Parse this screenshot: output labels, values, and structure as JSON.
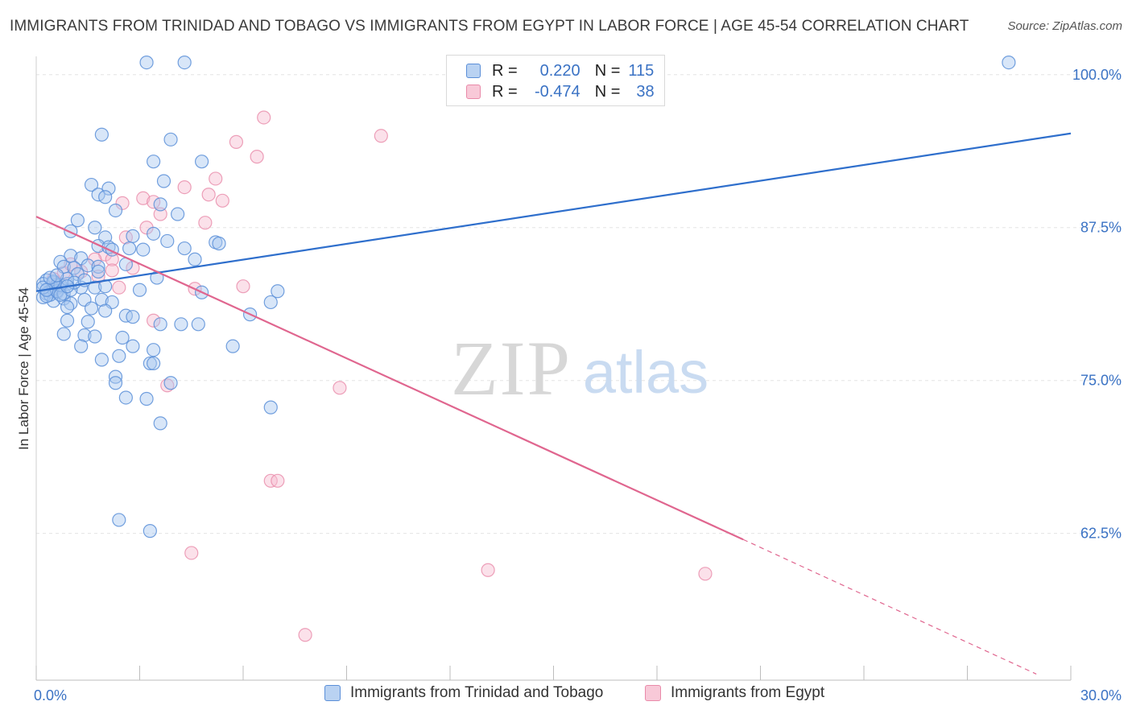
{
  "header": {
    "title": "IMMIGRANTS FROM TRINIDAD AND TOBAGO VS IMMIGRANTS FROM EGYPT IN LABOR FORCE | AGE 45-54 CORRELATION CHART",
    "source": "Source: ZipAtlas.com"
  },
  "watermark": {
    "zip": "ZIP",
    "atlas": "atlas"
  },
  "legend": {
    "series1": {
      "r_label": "R =",
      "r_value": "0.220",
      "n_label": "N =",
      "n_value": "115"
    },
    "series2": {
      "r_label": "R =",
      "r_value": "-0.474",
      "n_label": "N =",
      "n_value": "38"
    }
  },
  "colors": {
    "series1_fill": "#a9c7ef",
    "series1_stroke": "#5b8fd8",
    "series1_line": "#2f6fcc",
    "series2_fill": "#f6bdd0",
    "series2_stroke": "#e98aa9",
    "series2_line": "#e0668f",
    "tick_text": "#3a72c4",
    "grid": "#e4e4e4"
  },
  "chart_data": {
    "type": "scatter",
    "title": "IMMIGRANTS FROM TRINIDAD AND TOBAGO VS IMMIGRANTS FROM EGYPT IN LABOR FORCE | AGE 45-54 CORRELATION CHART",
    "xlabel": "",
    "ylabel": "In Labor Force | Age 45-54",
    "xlim": [
      0,
      30
    ],
    "ylim": [
      50.5,
      101.5
    ],
    "x_tick_labels": [
      "0.0%",
      "30.0%"
    ],
    "y_ticks": [
      100,
      87.5,
      75,
      62.5
    ],
    "y_tick_labels": [
      "100.0%",
      "87.5%",
      "75.0%",
      "62.5%"
    ],
    "grid": true,
    "legend_position": "bottom-center",
    "series": [
      {
        "name": "Immigrants from Trinidad and Tobago",
        "trend": {
          "x": [
            0,
            30
          ],
          "y": [
            82.3,
            95.2
          ]
        },
        "points": [
          [
            3.2,
            101.0
          ],
          [
            4.3,
            101.0
          ],
          [
            28.2,
            101.0
          ],
          [
            1.9,
            95.1
          ],
          [
            3.9,
            94.7
          ],
          [
            3.4,
            92.9
          ],
          [
            4.8,
            92.9
          ],
          [
            3.7,
            91.3
          ],
          [
            1.6,
            91.0
          ],
          [
            2.1,
            90.7
          ],
          [
            1.8,
            90.2
          ],
          [
            2.0,
            90.0
          ],
          [
            3.6,
            89.4
          ],
          [
            2.3,
            88.9
          ],
          [
            4.1,
            88.6
          ],
          [
            1.2,
            88.1
          ],
          [
            1.7,
            87.5
          ],
          [
            1.0,
            87.2
          ],
          [
            3.4,
            87.0
          ],
          [
            2.0,
            86.7
          ],
          [
            2.8,
            86.8
          ],
          [
            3.8,
            86.4
          ],
          [
            5.2,
            86.3
          ],
          [
            5.3,
            86.2
          ],
          [
            1.8,
            86.0
          ],
          [
            2.1,
            85.9
          ],
          [
            2.2,
            85.7
          ],
          [
            2.7,
            85.8
          ],
          [
            3.1,
            85.7
          ],
          [
            4.3,
            85.8
          ],
          [
            1.0,
            85.2
          ],
          [
            1.3,
            85.0
          ],
          [
            0.7,
            84.7
          ],
          [
            4.6,
            84.9
          ],
          [
            0.8,
            84.3
          ],
          [
            1.5,
            84.4
          ],
          [
            2.6,
            84.5
          ],
          [
            1.1,
            84.2
          ],
          [
            1.8,
            84.3
          ],
          [
            3.5,
            83.4
          ],
          [
            1.2,
            83.7
          ],
          [
            1.8,
            83.9
          ],
          [
            0.3,
            83.2
          ],
          [
            0.5,
            83.0
          ],
          [
            0.6,
            82.8
          ],
          [
            0.2,
            82.9
          ],
          [
            0.7,
            82.6
          ],
          [
            0.9,
            82.9
          ],
          [
            1.3,
            82.6
          ],
          [
            1.7,
            82.6
          ],
          [
            2.0,
            82.7
          ],
          [
            0.4,
            82.3
          ],
          [
            0.6,
            82.2
          ],
          [
            0.3,
            82.1
          ],
          [
            3.0,
            82.4
          ],
          [
            4.8,
            82.2
          ],
          [
            7.0,
            82.3
          ],
          [
            0.2,
            81.8
          ],
          [
            0.5,
            81.5
          ],
          [
            0.8,
            81.7
          ],
          [
            1.0,
            81.3
          ],
          [
            1.4,
            81.6
          ],
          [
            1.9,
            81.6
          ],
          [
            2.2,
            81.4
          ],
          [
            6.8,
            81.4
          ],
          [
            0.9,
            81.0
          ],
          [
            1.6,
            80.9
          ],
          [
            2.0,
            80.7
          ],
          [
            2.6,
            80.3
          ],
          [
            2.8,
            80.2
          ],
          [
            6.2,
            80.4
          ],
          [
            0.9,
            79.9
          ],
          [
            1.5,
            79.8
          ],
          [
            3.6,
            79.6
          ],
          [
            4.2,
            79.6
          ],
          [
            4.7,
            79.6
          ],
          [
            0.8,
            78.8
          ],
          [
            1.4,
            78.7
          ],
          [
            1.7,
            78.6
          ],
          [
            2.5,
            78.5
          ],
          [
            1.3,
            77.8
          ],
          [
            2.8,
            77.8
          ],
          [
            3.4,
            77.5
          ],
          [
            5.7,
            77.8
          ],
          [
            1.9,
            76.7
          ],
          [
            2.4,
            77.0
          ],
          [
            3.3,
            76.4
          ],
          [
            3.4,
            76.4
          ],
          [
            2.3,
            75.3
          ],
          [
            2.3,
            74.8
          ],
          [
            3.9,
            74.8
          ],
          [
            2.6,
            73.6
          ],
          [
            3.2,
            73.5
          ],
          [
            6.8,
            72.8
          ],
          [
            3.6,
            71.5
          ],
          [
            2.4,
            63.6
          ],
          [
            3.3,
            62.7
          ],
          [
            0.5,
            82.5
          ],
          [
            0.4,
            82.0
          ],
          [
            0.3,
            81.9
          ],
          [
            0.6,
            82.3
          ],
          [
            0.8,
            82.1
          ],
          [
            1.0,
            82.4
          ],
          [
            0.2,
            82.6
          ],
          [
            0.7,
            82.8
          ],
          [
            0.5,
            83.1
          ],
          [
            0.9,
            83.3
          ],
          [
            1.1,
            83.0
          ],
          [
            0.4,
            83.4
          ],
          [
            0.6,
            83.6
          ],
          [
            1.4,
            83.2
          ],
          [
            0.3,
            82.4
          ],
          [
            0.7,
            82.0
          ],
          [
            0.9,
            82.7
          ]
        ]
      },
      {
        "name": "Immigrants from Egypt",
        "trend": {
          "x": [
            0,
            20.5
          ],
          "y": [
            88.4,
            62.0
          ]
        },
        "trend_dashed": {
          "x": [
            20.5,
            29.0
          ],
          "y": [
            62.0,
            51.0
          ]
        },
        "points": [
          [
            6.6,
            96.5
          ],
          [
            5.8,
            94.5
          ],
          [
            10.0,
            95.0
          ],
          [
            6.4,
            93.3
          ],
          [
            5.2,
            91.5
          ],
          [
            4.3,
            90.8
          ],
          [
            5.0,
            90.2
          ],
          [
            3.1,
            89.9
          ],
          [
            3.4,
            89.6
          ],
          [
            5.4,
            89.7
          ],
          [
            2.5,
            89.5
          ],
          [
            3.6,
            88.6
          ],
          [
            4.9,
            87.9
          ],
          [
            3.2,
            87.5
          ],
          [
            2.6,
            86.7
          ],
          [
            2.0,
            85.3
          ],
          [
            1.7,
            84.9
          ],
          [
            2.2,
            84.9
          ],
          [
            2.2,
            84.0
          ],
          [
            1.3,
            83.9
          ],
          [
            1.8,
            83.5
          ],
          [
            0.8,
            83.8
          ],
          [
            0.5,
            83.3
          ],
          [
            2.4,
            82.6
          ],
          [
            4.6,
            82.5
          ],
          [
            6.0,
            82.7
          ],
          [
            3.4,
            79.9
          ],
          [
            3.8,
            74.6
          ],
          [
            8.8,
            74.4
          ],
          [
            6.8,
            66.8
          ],
          [
            7.0,
            66.8
          ],
          [
            4.5,
            60.9
          ],
          [
            13.1,
            59.5
          ],
          [
            19.4,
            59.2
          ],
          [
            7.8,
            54.2
          ],
          [
            1.0,
            84.5
          ],
          [
            2.8,
            84.2
          ],
          [
            0.6,
            82.9
          ]
        ]
      }
    ]
  }
}
